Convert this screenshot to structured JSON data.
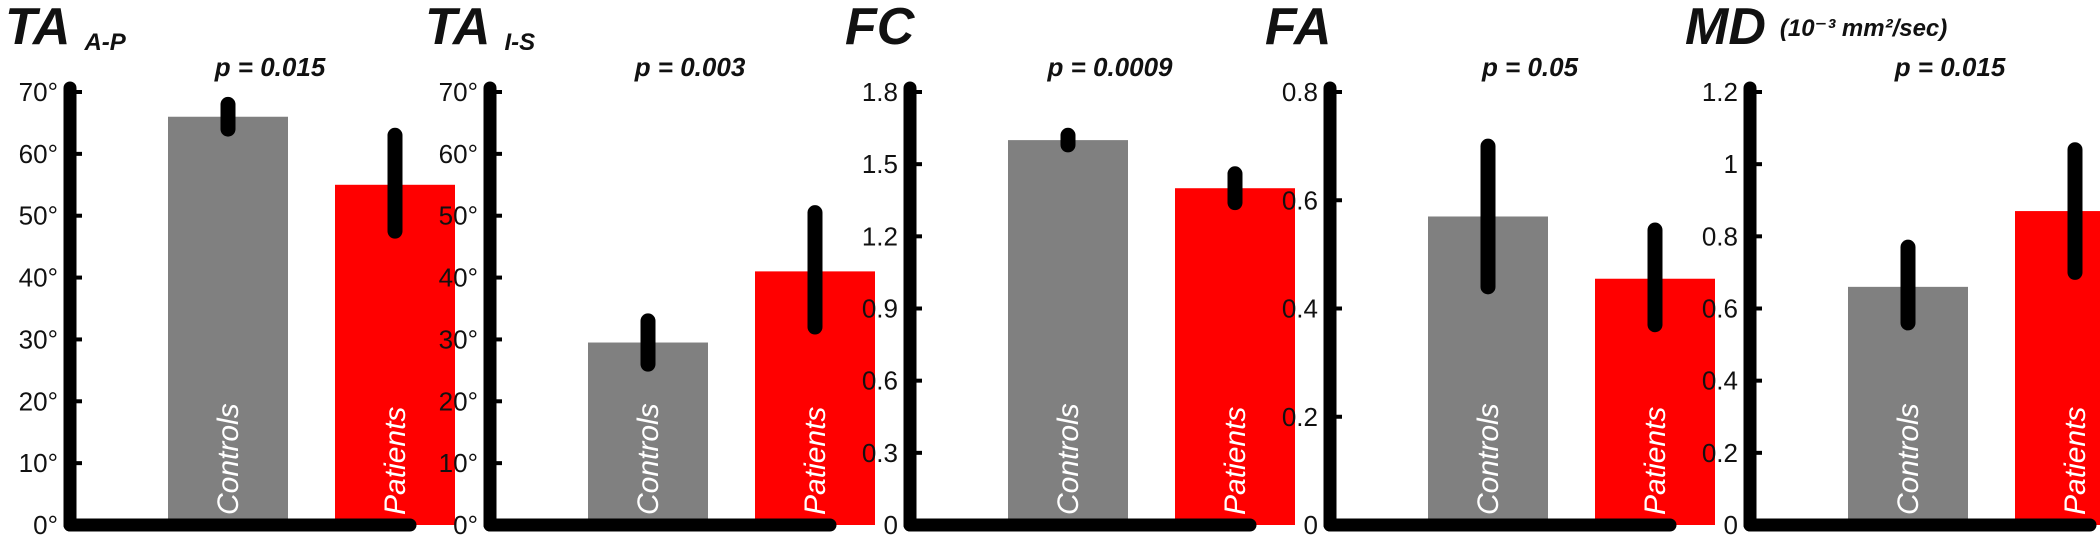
{
  "chart_data": [
    {
      "type": "bar",
      "title": "TA",
      "subtitle": "A-P",
      "p_value": "p = 0.015",
      "categories": [
        "Controls",
        "Patients"
      ],
      "values": [
        66,
        55
      ],
      "errors": [
        [
          64,
          68
        ],
        [
          47.5,
          63
        ]
      ],
      "colors": [
        "#808080",
        "#ff0000"
      ],
      "ylim": [
        0,
        70
      ],
      "yticks": [
        0,
        10,
        20,
        30,
        40,
        50,
        60,
        70
      ],
      "ytick_labels": [
        "0°",
        "10°",
        "20°",
        "30°",
        "40°",
        "50°",
        "60°",
        "70°"
      ]
    },
    {
      "type": "bar",
      "title": "TA",
      "subtitle": "I-S",
      "p_value": "p = 0.003",
      "categories": [
        "Controls",
        "Patients"
      ],
      "values": [
        29.5,
        41
      ],
      "errors": [
        [
          26,
          33
        ],
        [
          32,
          50.5
        ]
      ],
      "colors": [
        "#808080",
        "#ff0000"
      ],
      "ylim": [
        0,
        70
      ],
      "yticks": [
        0,
        10,
        20,
        30,
        40,
        50,
        60,
        70
      ],
      "ytick_labels": [
        "0°",
        "10°",
        "20°",
        "30°",
        "40°",
        "50°",
        "60°",
        "70°"
      ]
    },
    {
      "type": "bar",
      "title": "FC",
      "subtitle": "",
      "p_value": "p = 0.0009",
      "categories": [
        "Controls",
        "Patients"
      ],
      "values": [
        1.6,
        1.4
      ],
      "errors": [
        [
          1.58,
          1.62
        ],
        [
          1.34,
          1.46
        ]
      ],
      "colors": [
        "#808080",
        "#ff0000"
      ],
      "ylim": [
        0,
        1.8
      ],
      "yticks": [
        0,
        0.3,
        0.6,
        0.9,
        1.2,
        1.5,
        1.8
      ],
      "ytick_labels": [
        "0",
        "0.3",
        "0.6",
        "0.9",
        "1.2",
        "1.5",
        "1.8"
      ]
    },
    {
      "type": "bar",
      "title": "FA",
      "subtitle": "",
      "p_value": "p = 0.05",
      "categories": [
        "Controls",
        "Patients"
      ],
      "values": [
        0.57,
        0.455
      ],
      "errors": [
        [
          0.44,
          0.7
        ],
        [
          0.37,
          0.545
        ]
      ],
      "colors": [
        "#808080",
        "#ff0000"
      ],
      "ylim": [
        0,
        0.8
      ],
      "yticks": [
        0,
        0.2,
        0.4,
        0.6,
        0.8
      ],
      "ytick_labels": [
        "0",
        "0.2",
        "0.4",
        "0.6",
        "0.8"
      ]
    },
    {
      "type": "bar",
      "title": "MD",
      "subtitle": "(10⁻³ mm²/sec)",
      "p_value": "p = 0.015",
      "categories": [
        "Controls",
        "Patients"
      ],
      "values": [
        0.66,
        0.87
      ],
      "errors": [
        [
          0.56,
          0.77
        ],
        [
          0.7,
          1.04
        ]
      ],
      "colors": [
        "#808080",
        "#ff0000"
      ],
      "ylim": [
        0,
        1.2
      ],
      "yticks": [
        0,
        0.2,
        0.4,
        0.6,
        0.8,
        1,
        1.2
      ],
      "ytick_labels": [
        "0",
        "0.2",
        "0.4",
        "0.6",
        "0.8",
        "1",
        "1.2"
      ]
    }
  ]
}
